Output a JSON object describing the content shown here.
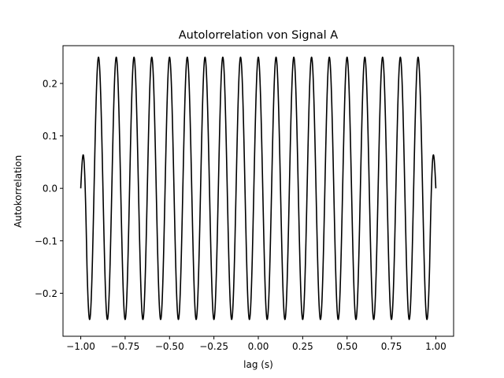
{
  "chart_data": {
    "type": "line",
    "title": "Autolorrelation von Signal A",
    "xlabel": "lag  (s)",
    "ylabel": "Autokorrelation",
    "xlim": [
      -1.1,
      1.1
    ],
    "ylim": [
      -0.282,
      0.272
    ],
    "xticks": [
      {
        "value": -1.0,
        "label": "−1.00"
      },
      {
        "value": -0.75,
        "label": "−0.75"
      },
      {
        "value": -0.5,
        "label": "−0.50"
      },
      {
        "value": -0.25,
        "label": "−0.25"
      },
      {
        "value": 0.0,
        "label": "0.00"
      },
      {
        "value": 0.25,
        "label": "0.25"
      },
      {
        "value": 0.5,
        "label": "0.50"
      },
      {
        "value": 0.75,
        "label": "0.75"
      },
      {
        "value": 1.0,
        "label": "1.00"
      }
    ],
    "yticks": [
      {
        "value": -0.2,
        "label": "−0.2"
      },
      {
        "value": -0.1,
        "label": "−0.1"
      },
      {
        "value": 0.0,
        "label": "0.0"
      },
      {
        "value": 0.1,
        "label": "0.1"
      },
      {
        "value": 0.2,
        "label": "0.2"
      }
    ],
    "grid": false,
    "line_color": "#000000",
    "series": [
      {
        "lag_range": [
          -1.0,
          1.0
        ],
        "frequency_hz": 10,
        "amplitude": 0.25,
        "function": "autocorrelation of a 10 Hz sine, approx. 0.25*cos(2*pi*10*lag) with edge taper to 0 at lag = ±1",
        "start_value": 0.0,
        "end_value": 0.0,
        "min_value": -0.26,
        "max_value": 0.248
      }
    ]
  }
}
